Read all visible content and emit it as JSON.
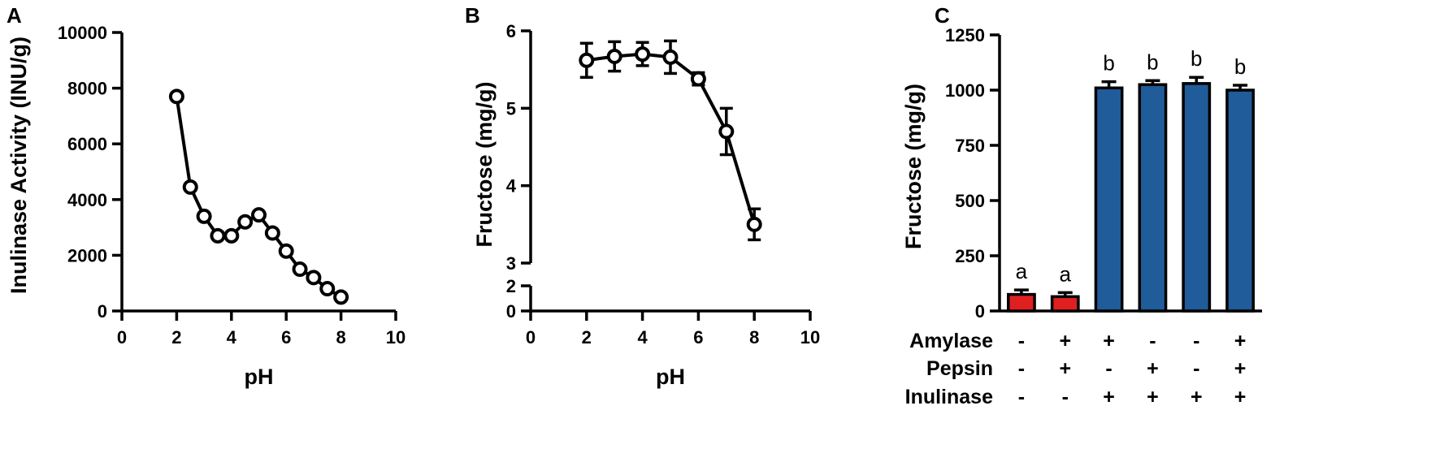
{
  "chart_data": [
    {
      "panel": "A",
      "type": "line",
      "xlabel": "pH",
      "ylabel": "Inulinase Activity (INU/g)",
      "xlim": [
        0,
        10
      ],
      "ylim": [
        0,
        10000
      ],
      "xticks": [
        "0",
        "2",
        "4",
        "6",
        "8",
        "10"
      ],
      "yticks": [
        "0",
        "2000",
        "4000",
        "6000",
        "8000",
        "10000"
      ],
      "grid": false,
      "marker": "open-circle",
      "series": [
        {
          "x": [
            2,
            2.5,
            3,
            3.5,
            4,
            4.5,
            5,
            5.5,
            6,
            6.5,
            7,
            7.5,
            8
          ],
          "y": [
            7700,
            4450,
            3400,
            2700,
            2700,
            3200,
            3450,
            2800,
            2150,
            1500,
            1200,
            800,
            500
          ]
        }
      ]
    },
    {
      "panel": "B",
      "type": "line",
      "xlabel": "pH",
      "ylabel": "Fructose (mg/g)",
      "xlim": [
        0,
        10
      ],
      "ylim_lower": [
        0,
        2
      ],
      "ylim_upper": [
        3,
        6
      ],
      "axis_break": true,
      "xticks": [
        "0",
        "2",
        "4",
        "6",
        "8",
        "10"
      ],
      "yticks": [
        "0",
        "2",
        "3",
        "4",
        "5",
        "6"
      ],
      "grid": false,
      "marker": "open-circle",
      "series": [
        {
          "x": [
            2,
            3,
            4,
            5,
            6,
            7,
            8
          ],
          "y": [
            5.62,
            5.67,
            5.7,
            5.66,
            5.38,
            4.7,
            3.5
          ],
          "error": [
            0.22,
            0.19,
            0.15,
            0.21,
            0.08,
            0.3,
            0.2
          ]
        }
      ]
    },
    {
      "panel": "C",
      "type": "bar",
      "ylabel": "Fructose (mg/g)",
      "ylim": [
        0,
        1250
      ],
      "yticks": [
        "0",
        "250",
        "500",
        "750",
        "1000",
        "1250"
      ],
      "grid": false,
      "values": [
        75,
        65,
        1010,
        1025,
        1030,
        1000
      ],
      "error": [
        20,
        18,
        28,
        18,
        28,
        22
      ],
      "colors": [
        "#e02020",
        "#e02020",
        "#1f5c99",
        "#1f5c99",
        "#1f5c99",
        "#1f5c99"
      ],
      "significance": [
        "a",
        "a",
        "b",
        "b",
        "b",
        "b"
      ],
      "conditions": [
        {
          "label": "Amylase",
          "signs": [
            "-",
            "+",
            "+",
            "-",
            "-",
            "+"
          ]
        },
        {
          "label": "Pepsin",
          "signs": [
            "-",
            "+",
            "-",
            "+",
            "-",
            "+"
          ]
        },
        {
          "label": "Inulinase",
          "signs": [
            "-",
            "-",
            "+",
            "+",
            "+",
            "+"
          ]
        }
      ]
    }
  ]
}
